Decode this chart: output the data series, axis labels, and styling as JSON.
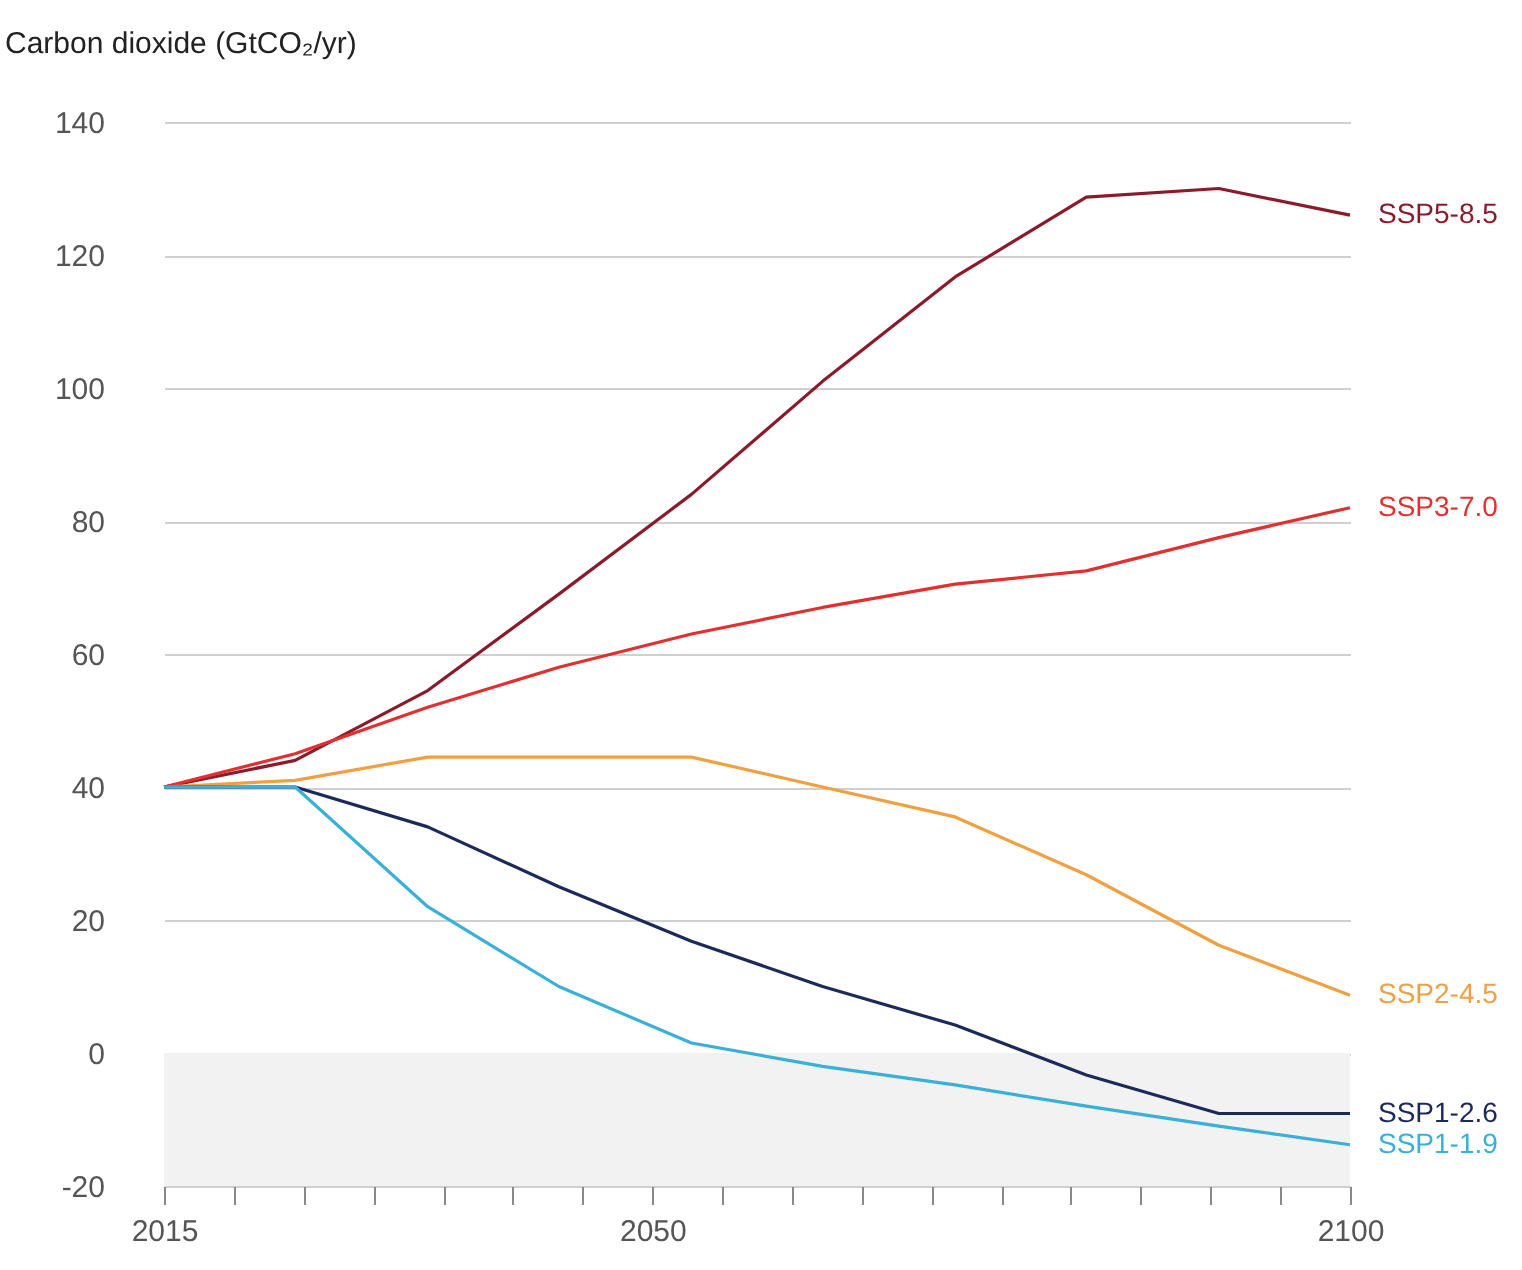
{
  "chart_data": {
    "type": "line",
    "ylabel": "Carbon dioxide (GtCO₂/yr)",
    "x": [
      2015,
      2024.4,
      2033.9,
      2043.3,
      2052.8,
      2062.2,
      2071.7,
      2081.1,
      2090.6,
      2100
    ],
    "series": [
      {
        "name": "SSP5-8.5",
        "color": "#8b1a2b",
        "values": [
          40,
          44,
          54.5,
          69,
          84,
          101,
          116.7,
          128.7,
          130,
          126
        ]
      },
      {
        "name": "SSP3-7.0",
        "color": "#e03030",
        "values": [
          40,
          45,
          52,
          58,
          63,
          67,
          70.5,
          72.5,
          77.5,
          82
        ]
      },
      {
        "name": "SSP2-4.5",
        "color": "#f0a040",
        "values": [
          40,
          41,
          44.5,
          44.5,
          44.5,
          40,
          35.5,
          26.8,
          16.2,
          8.7
        ]
      },
      {
        "name": "SSP1-2.6",
        "color": "#1c2a5a",
        "values": [
          40,
          40,
          34,
          25,
          16.8,
          10,
          4.2,
          -3.3,
          -9.1,
          -9.1
        ]
      },
      {
        "name": "SSP1-1.9",
        "color": "#3ab0d8",
        "values": [
          40,
          40,
          22,
          10,
          1.5,
          -2,
          -4.8,
          -8,
          -11,
          -13.8
        ]
      }
    ],
    "xlim": [
      2015,
      2100
    ],
    "xticks": [
      2015,
      {
        "value": 2020,
        "label": null
      },
      {
        "value": 2025,
        "label": null
      },
      {
        "value": 2030,
        "label": null
      },
      {
        "value": 2035,
        "label": null
      },
      {
        "value": 2040,
        "label": null
      },
      {
        "value": 2045,
        "label": null
      },
      2050,
      {
        "value": 2055,
        "label": null
      },
      {
        "value": 2060,
        "label": null
      },
      {
        "value": 2065,
        "label": null
      },
      {
        "value": 2070,
        "label": null
      },
      {
        "value": 2075,
        "label": null
      },
      {
        "value": 2080,
        "label": null
      },
      {
        "value": 2085,
        "label": null
      },
      {
        "value": 2090,
        "label": null
      },
      {
        "value": 2095,
        "label": null
      },
      2100
    ],
    "ylim": [
      -20,
      140
    ],
    "yticks": [
      -20,
      0,
      20,
      40,
      60,
      80,
      100,
      120,
      140
    ],
    "bands": [
      {
        "axis": "y",
        "from": -20,
        "to": 0,
        "color": "#f2f2f2"
      }
    ],
    "grid": "y",
    "legend": false
  }
}
